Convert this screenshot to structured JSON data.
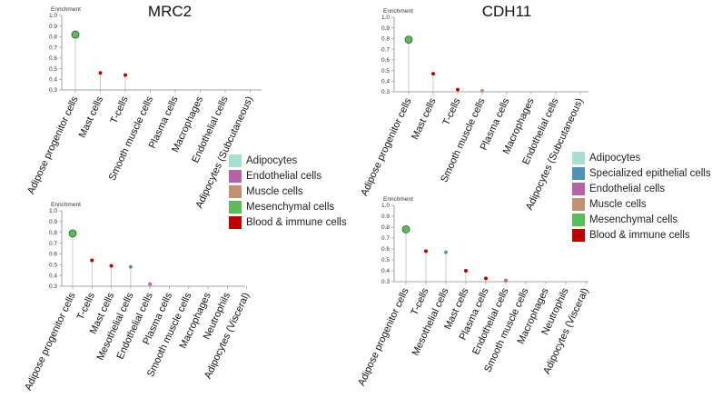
{
  "colors": {
    "Adipocytes": "#a8dfd2",
    "Specialized epithelial cells": "#4e93b5",
    "Endothelial cells": "#b564a6",
    "Muscle cells": "#c09272",
    "Mesenchymal cells": "#5dbb5a",
    "Blood & immune cells": "#c00000"
  },
  "legends": [
    {
      "items": [
        "Adipocytes",
        "Endothelial cells",
        "Muscle cells",
        "Mesenchymal cells",
        "Blood & immune cells"
      ]
    },
    {
      "items": [
        "Adipocytes",
        "Specialized epithelial cells",
        "Endothelial cells",
        "Muscle cells",
        "Mesenchymal cells",
        "Blood & immune cells"
      ]
    }
  ],
  "chart_data": [
    {
      "type": "lollipop",
      "title": "MRC2",
      "ylabel": "Enrichment",
      "ylim": [
        0.3,
        1.0
      ],
      "yticks": [
        "0.3",
        "0.4",
        "0.5",
        "0.6",
        "0.7",
        "0.8",
        "0.9",
        "1.0"
      ],
      "categories": [
        "Adipose progenitor cells",
        "Mast cells",
        "T-cells",
        "Smooth muscle cells",
        "Plasma cells",
        "Macrophages",
        "Endothelial cells",
        "Adipocytes (Subcutaneous)"
      ],
      "values": [
        0.82,
        0.46,
        0.44,
        null,
        null,
        null,
        null,
        null
      ],
      "groups": [
        "Mesenchymal cells",
        "Blood & immune cells",
        "Blood & immune cells",
        "Muscle cells",
        "Blood & immune cells",
        "Blood & immune cells",
        "Endothelial cells",
        "Adipocytes"
      ]
    },
    {
      "type": "lollipop",
      "title": "CDH11",
      "ylabel": "Enrichment",
      "ylim": [
        0.3,
        1.0
      ],
      "yticks": [
        "0.3",
        "0.4",
        "0.5",
        "0.6",
        "0.7",
        "0.8",
        "0.9",
        "1.0"
      ],
      "categories": [
        "Adipose progenitor cells",
        "Mast cells",
        "T-cells",
        "Smooth muscle cells",
        "Plasma cells",
        "Macrophages",
        "Endothelial cells",
        "Adipocytes (Subcutaneous)"
      ],
      "values": [
        0.79,
        0.47,
        0.32,
        0.31,
        null,
        null,
        null,
        null
      ],
      "groups": [
        "Mesenchymal cells",
        "Blood & immune cells",
        "Blood & immune cells",
        "Muscle cells",
        "Blood & immune cells",
        "Blood & immune cells",
        "Endothelial cells",
        "Adipocytes"
      ]
    },
    {
      "type": "lollipop",
      "title": "",
      "ylabel": "Enrichment",
      "ylim": [
        0.3,
        1.0
      ],
      "yticks": [
        "0.3",
        "0.4",
        "0.5",
        "0.6",
        "0.7",
        "0.8",
        "0.9",
        "1.0"
      ],
      "categories": [
        "Adipose progenitor cells",
        "T-cells",
        "Mast cells",
        "Mesothelial cells",
        "Endothelial cells",
        "Plasma cells",
        "Smooth muscle cells",
        "Macrophages",
        "Neutrophils",
        "Adipocytes (Visceral)"
      ],
      "values": [
        0.79,
        0.54,
        0.49,
        0.48,
        0.32,
        null,
        null,
        null,
        null,
        null
      ],
      "groups": [
        "Mesenchymal cells",
        "Blood & immune cells",
        "Blood & immune cells",
        "Specialized epithelial cells",
        "Endothelial cells",
        "Blood & immune cells",
        "Muscle cells",
        "Blood & immune cells",
        "Blood & immune cells",
        "Adipocytes"
      ]
    },
    {
      "type": "lollipop",
      "title": "",
      "ylabel": "Enrichment",
      "ylim": [
        0.3,
        1.0
      ],
      "yticks": [
        "0.3",
        "0.4",
        "0.5",
        "0.6",
        "0.7",
        "0.8",
        "0.9",
        "1.0"
      ],
      "categories": [
        "Adipose progenitor cells",
        "T-cells",
        "Mesothelial cells",
        "Mast cells",
        "Plasma cells",
        "Endothelial cells",
        "Smooth muscle cells",
        "Macrophages",
        "Neutrophils",
        "Adipocytes (Visceral)"
      ],
      "values": [
        0.78,
        0.58,
        0.57,
        0.4,
        0.33,
        0.31,
        null,
        null,
        null,
        null
      ],
      "groups": [
        "Mesenchymal cells",
        "Blood & immune cells",
        "Specialized epithelial cells",
        "Blood & immune cells",
        "Blood & immune cells",
        "Endothelial cells",
        "Muscle cells",
        "Blood & immune cells",
        "Blood & immune cells",
        "Adipocytes"
      ]
    }
  ]
}
